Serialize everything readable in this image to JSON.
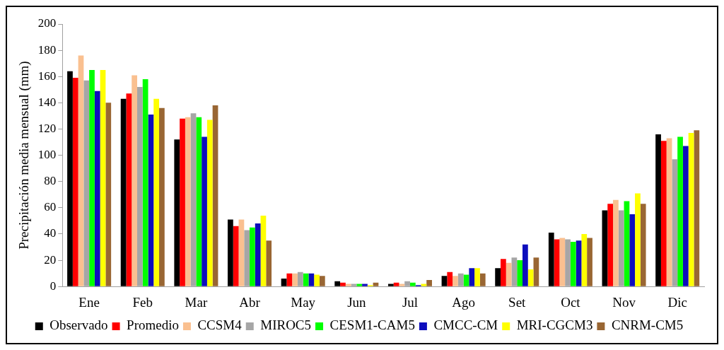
{
  "chart_data": {
    "type": "bar",
    "ylabel": "Precipitación media mensual (mm)",
    "categories": [
      "Ene",
      "Feb",
      "Mar",
      "Abr",
      "May",
      "Jun",
      "Jul",
      "Ago",
      "Set",
      "Oct",
      "Nov",
      "Dic"
    ],
    "series": [
      {
        "name": "Observado",
        "color": "#000000",
        "values": [
          164,
          143,
          112,
          51,
          6,
          4,
          2,
          8,
          14,
          41,
          58,
          116
        ]
      },
      {
        "name": "Promedio",
        "color": "#ff0000",
        "values": [
          159,
          147,
          128,
          46,
          10,
          3,
          3,
          11,
          21,
          36,
          63,
          111
        ]
      },
      {
        "name": "CCSM4",
        "color": "#fac090",
        "values": [
          176,
          161,
          129,
          51,
          10,
          2,
          2,
          8,
          18,
          37,
          66,
          113
        ]
      },
      {
        "name": "MIROC5",
        "color": "#a6a6a6",
        "values": [
          157,
          152,
          132,
          43,
          11,
          2,
          4,
          10,
          22,
          36,
          58,
          97
        ]
      },
      {
        "name": "CESM1-CAM5",
        "color": "#00ff00",
        "values": [
          165,
          158,
          129,
          45,
          10,
          2,
          3,
          9,
          20,
          34,
          65,
          114
        ]
      },
      {
        "name": "CMCC-CM",
        "color": "#0d0dbd",
        "values": [
          149,
          131,
          114,
          48,
          10,
          2,
          1,
          14,
          32,
          35,
          55,
          107
        ]
      },
      {
        "name": "MRI-CGCM3",
        "color": "#ffff00",
        "values": [
          165,
          143,
          127,
          54,
          9,
          1,
          2,
          14,
          13,
          40,
          71,
          117
        ]
      },
      {
        "name": "CNRM-CM5",
        "color": "#996633",
        "values": [
          140,
          136,
          138,
          35,
          8,
          3,
          5,
          10,
          22,
          37,
          63,
          119
        ]
      }
    ],
    "ylim": [
      0,
      200
    ],
    "yticks": [
      0,
      20,
      40,
      60,
      80,
      100,
      120,
      140,
      160,
      180,
      200
    ],
    "grid": false,
    "legend": "bottom"
  }
}
